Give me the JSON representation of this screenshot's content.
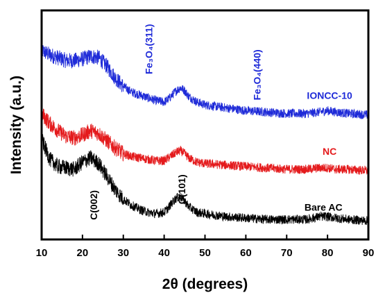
{
  "chart_data": {
    "type": "line",
    "xlabel": "2θ (degrees)",
    "ylabel": "Intensity (a.u.)",
    "xlim": [
      10,
      90
    ],
    "ylim": [
      0,
      16
    ],
    "xticks": [
      10,
      20,
      30,
      40,
      50,
      60,
      70,
      80,
      90
    ],
    "yticks_shown": false,
    "grid": false,
    "series": [
      {
        "name": "IONCC-10",
        "color": "#1f2bd8",
        "x": [
          10,
          12,
          14,
          16,
          18,
          20,
          22,
          24,
          26,
          28,
          30,
          32,
          34,
          36,
          38,
          40,
          41,
          42,
          43,
          44,
          45,
          46,
          48,
          50,
          55,
          60,
          65,
          70,
          75,
          78,
          80,
          82,
          85,
          90
        ],
        "y": [
          13.2,
          12.9,
          12.7,
          12.5,
          12.5,
          12.6,
          12.8,
          12.7,
          12.1,
          11.3,
          10.7,
          10.3,
          10.1,
          9.9,
          9.7,
          9.6,
          9.8,
          10.1,
          10.4,
          10.6,
          10.4,
          10.0,
          9.6,
          9.4,
          9.2,
          9.0,
          8.9,
          8.8,
          8.8,
          8.9,
          9.0,
          8.9,
          8.8,
          8.7
        ]
      },
      {
        "name": "NC",
        "color": "#e41a1c",
        "x": [
          10,
          12,
          14,
          16,
          18,
          20,
          22,
          24,
          26,
          28,
          30,
          32,
          34,
          36,
          38,
          40,
          41,
          42,
          43,
          44,
          45,
          46,
          48,
          50,
          55,
          60,
          65,
          70,
          75,
          78,
          80,
          82,
          85,
          90
        ],
        "y": [
          8.8,
          8.1,
          7.6,
          7.2,
          7.1,
          7.3,
          7.6,
          7.4,
          6.9,
          6.4,
          6.0,
          5.8,
          5.7,
          5.6,
          5.5,
          5.5,
          5.7,
          5.9,
          6.1,
          6.2,
          6.0,
          5.7,
          5.4,
          5.3,
          5.2,
          5.1,
          5.0,
          4.9,
          4.9,
          5.0,
          5.0,
          4.9,
          4.9,
          4.8
        ]
      },
      {
        "name": "Bare AC",
        "color": "#000000",
        "x": [
          10,
          11,
          12,
          14,
          16,
          18,
          20,
          22,
          24,
          26,
          28,
          30,
          32,
          34,
          36,
          38,
          40,
          41,
          42,
          43,
          44,
          45,
          46,
          48,
          50,
          55,
          60,
          65,
          70,
          75,
          78,
          80,
          82,
          85,
          90
        ],
        "y": [
          7.0,
          6.3,
          5.6,
          5.1,
          5.0,
          4.9,
          5.4,
          5.7,
          5.3,
          4.4,
          3.5,
          2.8,
          2.4,
          2.1,
          1.9,
          1.8,
          1.9,
          2.2,
          2.6,
          2.9,
          3.0,
          2.7,
          2.3,
          1.9,
          1.8,
          1.6,
          1.5,
          1.4,
          1.4,
          1.4,
          1.6,
          1.6,
          1.5,
          1.4,
          1.3
        ]
      }
    ],
    "annotations": [
      {
        "text": "Fe₃O₄(311)",
        "x": 36.5,
        "y": 13.3,
        "rotation": -90,
        "color": "#1f2bd8"
      },
      {
        "text": "Fe₃O₄(440)",
        "x": 63.0,
        "y": 11.5,
        "rotation": -90,
        "color": "#1f2bd8"
      },
      {
        "text": "IONCC-10",
        "x": 80.5,
        "y": 10.0,
        "rotation": 0,
        "color": "#1f2bd8"
      },
      {
        "text": "NC",
        "x": 80.5,
        "y": 6.1,
        "rotation": 0,
        "color": "#e41a1c"
      },
      {
        "text": "Bare AC",
        "x": 79.0,
        "y": 2.2,
        "rotation": 0,
        "color": "#000000"
      },
      {
        "text": "C(002)",
        "x": 23.0,
        "y": 2.4,
        "rotation": -90,
        "color": "#000000"
      },
      {
        "text": "C(101)",
        "x": 44.5,
        "y": 3.5,
        "rotation": -90,
        "color": "#000000"
      }
    ]
  }
}
